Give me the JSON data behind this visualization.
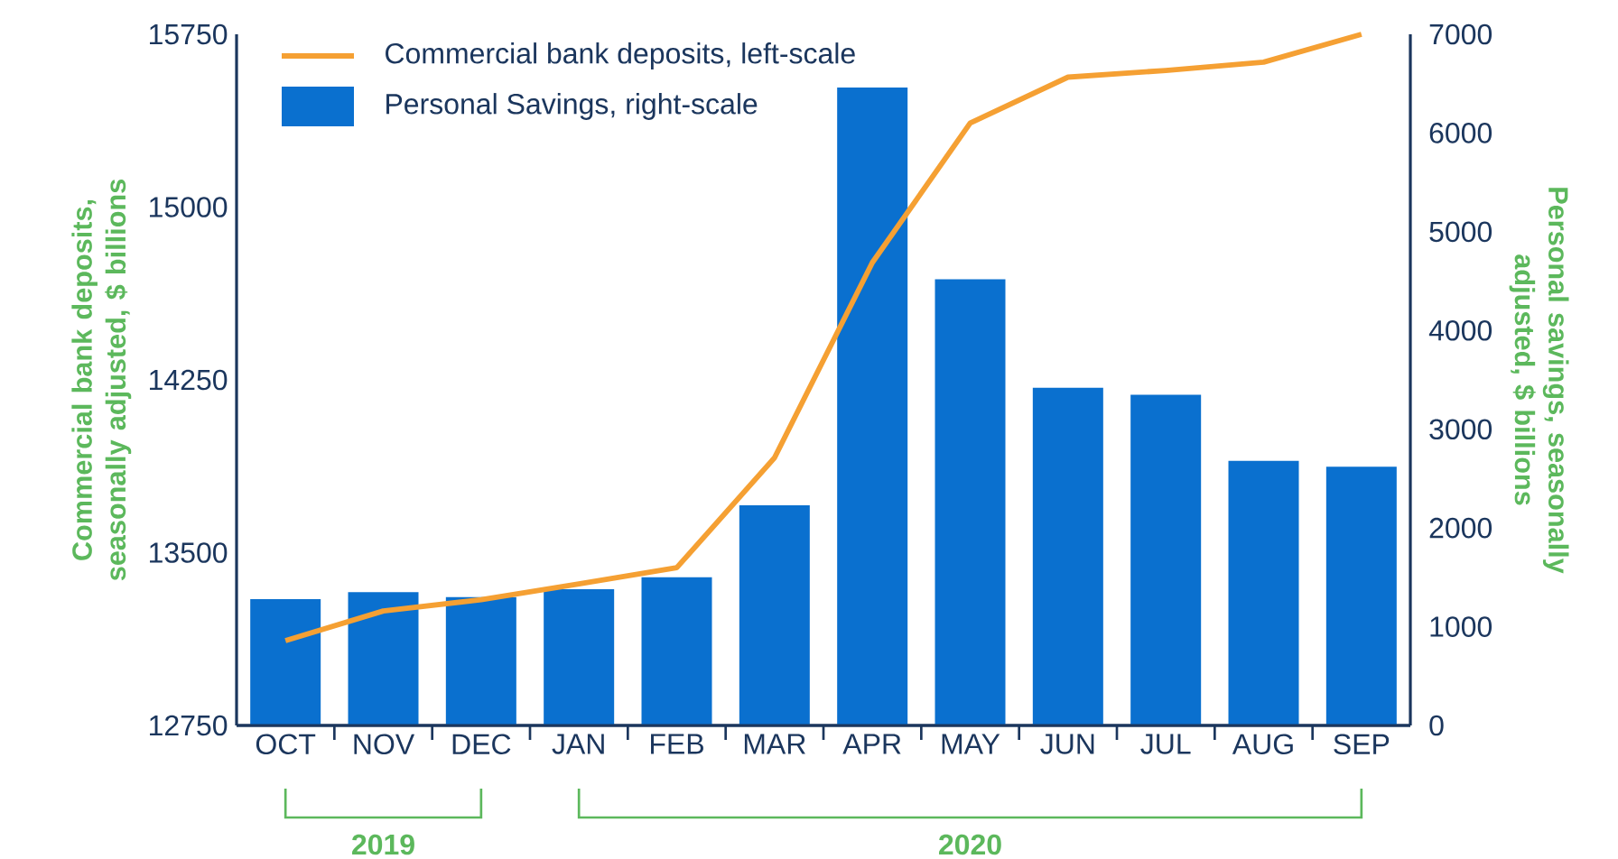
{
  "chart_data": {
    "type": "bar",
    "categories": [
      "OCT",
      "NOV",
      "DEC",
      "JAN",
      "FEB",
      "MAR",
      "APR",
      "MAY",
      "JUN",
      "JUL",
      "AUG",
      "SEP"
    ],
    "series": [
      {
        "name": "Commercial bank deposits, left-scale",
        "type": "line",
        "color": "#f5a033",
        "values": [
          13118,
          13247,
          13296,
          13364,
          13435,
          13912,
          14759,
          15365,
          15564,
          15593,
          15629,
          15750
        ]
      },
      {
        "name": "Personal Savings, right-scale",
        "axis": "y2",
        "color": "#0a70cf",
        "values": [
          1280,
          1350,
          1300,
          1380,
          1500,
          2230,
          6460,
          4520,
          3420,
          3350,
          2680,
          2620
        ]
      }
    ],
    "ylim": [
      12750,
      15750
    ],
    "yticks": [
      12750,
      13500,
      14250,
      15000,
      15750
    ],
    "y2lim": [
      0,
      7000
    ],
    "y2ticks": [
      0,
      1000,
      2000,
      3000,
      4000,
      5000,
      6000,
      7000
    ],
    "ylabel": "Commercial bank deposits, seasonally adjusted, $ billions",
    "y2label": "Personal savings, seasonally adjusted, $ billions",
    "annotations": [
      "2019",
      "2020"
    ],
    "legend": "top left"
  }
}
